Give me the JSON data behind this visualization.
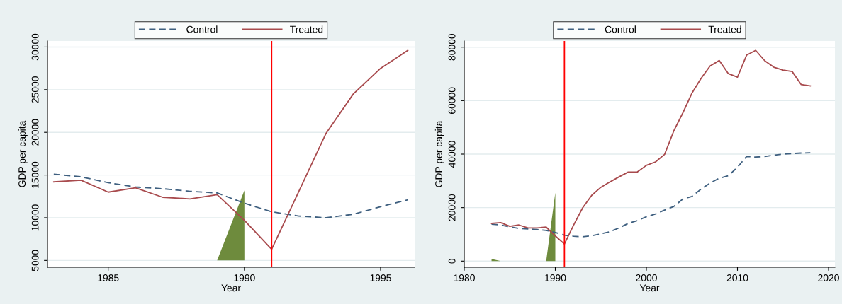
{
  "chart_data": [
    {
      "type": "line",
      "xlabel": "Year",
      "ylabel": "GDP per capita",
      "xlim": [
        1982.77,
        1996.25
      ],
      "xticks": [
        1985,
        1990,
        1995
      ],
      "ylim": [
        4200,
        30700
      ],
      "yticks": [
        5000,
        10000,
        15000,
        20000,
        25000,
        30000
      ],
      "grid": "y",
      "legend": "top",
      "line_style": "solid",
      "marker": "none",
      "series": [
        {
          "name": "Control",
          "color": "#3e5f7f",
          "line_style": "dashed",
          "x": [
            1983,
            1984,
            1985,
            1986,
            1987,
            1988,
            1989,
            1990,
            1991,
            1992,
            1993,
            1994,
            1995,
            1996
          ],
          "values": [
            15100,
            14800,
            14100,
            13600,
            13400,
            13100,
            12900,
            11700,
            10700,
            10200,
            10000,
            10400,
            11300,
            12100
          ]
        },
        {
          "name": "Treated",
          "color": "#a84a4d",
          "x": [
            1983,
            1984,
            1985,
            1986,
            1987,
            1988,
            1989,
            1990,
            1991,
            1992,
            1993,
            1994,
            1995,
            1996
          ],
          "values": [
            14200,
            14400,
            13000,
            13500,
            12400,
            12200,
            12700,
            9700,
            6300,
            13100,
            19900,
            24500,
            27500,
            29600
          ]
        },
        {
          "type": "area",
          "color": "#6e8b3d",
          "x": [
            1989,
            1990
          ],
          "values": [
            5000,
            13200
          ]
        }
      ],
      "ref_lines": [
        {
          "axis": "x",
          "value": 1991,
          "color": "#ff0000"
        }
      ]
    },
    {
      "type": "line",
      "xlabel": "Year",
      "ylabel": "GDP per capita",
      "xlim": [
        1980,
        2020.7
      ],
      "xticks": [
        1980,
        1990,
        2000,
        2010,
        2020
      ],
      "ylim": [
        -2300,
        82300
      ],
      "yticks": [
        0,
        20000,
        40000,
        60000,
        80000
      ],
      "grid": "y",
      "legend": "top",
      "line_style": "solid",
      "marker": "none",
      "series": [
        {
          "name": "Control",
          "color": "#3e5f7f",
          "line_style": "dashed",
          "x": [
            1983,
            1984,
            1985,
            1986,
            1987,
            1988,
            1989,
            1990,
            1991,
            1992,
            1993,
            1994,
            1995,
            1996,
            1997,
            1998,
            1999,
            2000,
            2001,
            2002,
            2003,
            2004,
            2005,
            2006,
            2007,
            2008,
            2009,
            2010,
            2011,
            2012,
            2013,
            2014,
            2015,
            2016,
            2017,
            2018
          ],
          "values": [
            13800,
            13500,
            12800,
            12200,
            12000,
            11800,
            11500,
            10700,
            9700,
            9300,
            9100,
            9500,
            10200,
            11000,
            12400,
            14100,
            15100,
            16600,
            17600,
            19100,
            20400,
            23200,
            24200,
            26900,
            29200,
            31000,
            31900,
            35100,
            39100,
            38900,
            39100,
            39600,
            40000,
            40200,
            40400,
            40500
          ]
        },
        {
          "name": "Treated",
          "color": "#a84a4d",
          "x": [
            1983,
            1984,
            1985,
            1986,
            1987,
            1988,
            1989,
            1990,
            1991,
            1992,
            1993,
            1994,
            1995,
            1996,
            1997,
            1998,
            1999,
            2000,
            2001,
            2002,
            2003,
            2004,
            2005,
            2006,
            2007,
            2008,
            2009,
            2010,
            2011,
            2012,
            2013,
            2014,
            2015,
            2016,
            2017,
            2018
          ],
          "values": [
            14100,
            14400,
            13000,
            13500,
            12400,
            12400,
            12700,
            9400,
            6400,
            13400,
            19900,
            24600,
            27600,
            29600,
            31500,
            33300,
            33300,
            35800,
            37100,
            39900,
            48600,
            55400,
            62800,
            68300,
            73000,
            75000,
            70100,
            68800,
            77000,
            78800,
            74900,
            72500,
            71400,
            70900,
            66000,
            65500
          ]
        },
        {
          "type": "area",
          "color": "#6e8b3d",
          "x": [
            1983,
            1984,
            1989,
            1990
          ],
          "values": [
            800,
            0,
            0,
            25600
          ]
        }
      ],
      "ref_lines": [
        {
          "axis": "x",
          "value": 1991,
          "color": "#ff0000"
        }
      ]
    }
  ]
}
